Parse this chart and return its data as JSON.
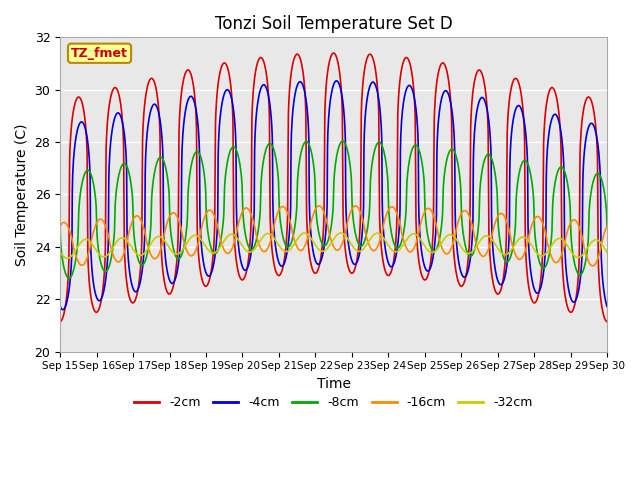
{
  "title": "Tonzi Soil Temperature Set D",
  "xlabel": "Time",
  "ylabel": "Soil Temperature (C)",
  "ylim": [
    20,
    32
  ],
  "yticks": [
    20,
    22,
    24,
    26,
    28,
    30,
    32
  ],
  "n_days": 15,
  "xtick_labels": [
    "Sep 15",
    "Sep 16",
    "Sep 17",
    "Sep 18",
    "Sep 19",
    "Sep 20",
    "Sep 21",
    "Sep 22",
    "Sep 23",
    "Sep 24",
    "Sep 25",
    "Sep 26",
    "Sep 27",
    "Sep 28",
    "Sep 29",
    "Sep 30"
  ],
  "series": [
    {
      "label": "-2cm",
      "color": "#dd0000",
      "mean": 26.0,
      "amplitude": 4.2,
      "phase_shift": 0.0,
      "sharpness": 3.5
    },
    {
      "label": "-4cm",
      "color": "#0000dd",
      "mean": 25.7,
      "amplitude": 3.5,
      "phase_shift": 0.08,
      "sharpness": 3.0
    },
    {
      "label": "-8cm",
      "color": "#00aa00",
      "mean": 25.2,
      "amplitude": 2.0,
      "phase_shift": 0.25,
      "sharpness": 2.0
    },
    {
      "label": "-16cm",
      "color": "#ff8800",
      "mean": 24.3,
      "amplitude": 0.85,
      "phase_shift": 0.6,
      "sharpness": 1.2
    },
    {
      "label": "-32cm",
      "color": "#cccc00",
      "mean": 24.0,
      "amplitude": 0.35,
      "phase_shift": 1.2,
      "sharpness": 1.0
    }
  ],
  "bg_color": "#e8e8e8",
  "legend_label": "TZ_fmet",
  "legend_box_color": "#ffff99",
  "legend_box_edge": "#bb8800"
}
